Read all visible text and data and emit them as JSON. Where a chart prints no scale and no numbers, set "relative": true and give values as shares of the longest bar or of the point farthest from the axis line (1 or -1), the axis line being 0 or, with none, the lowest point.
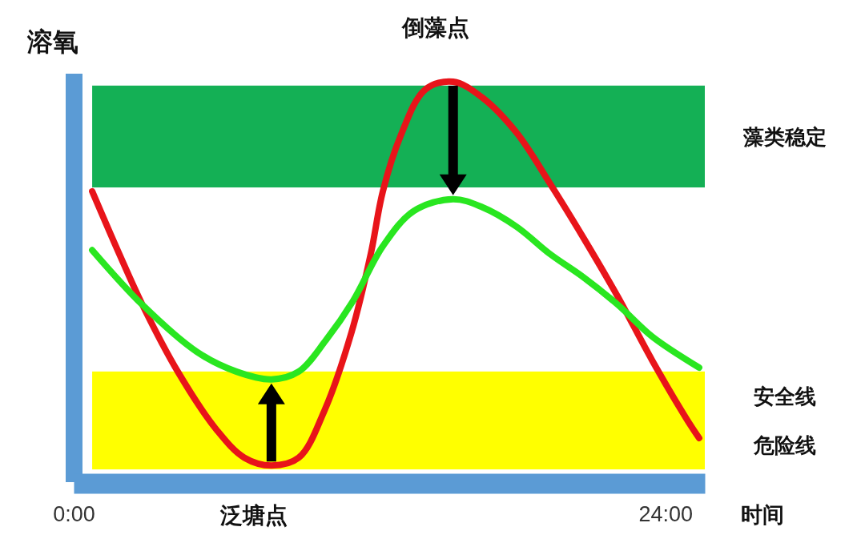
{
  "chart_data": {
    "type": "line",
    "xlabel": "时间",
    "ylabel": "溶氧",
    "relative": true,
    "xlim": [
      0,
      25.6
    ],
    "xticks": [
      {
        "value": 0,
        "label": "0:00"
      },
      {
        "value": 24,
        "label": "24:00"
      }
    ],
    "series": [
      {
        "color": "#e8141a",
        "x": [
          0.75,
          1.85,
          2.79,
          4.22,
          5.81,
          6.92,
          8.02,
          9.13,
          10.17,
          11.27,
          12.05,
          12.54,
          13.25,
          14.26,
          15.39,
          16.56,
          17.96,
          19.32,
          20.69,
          22.08,
          23.45,
          24.85,
          25.37
        ],
        "values": [
          0.72,
          0.56,
          0.43,
          0.26,
          0.11,
          0.04,
          0.02,
          0.04,
          0.16,
          0.36,
          0.56,
          0.72,
          0.86,
          0.98,
          1.0,
          0.96,
          0.87,
          0.74,
          0.6,
          0.45,
          0.29,
          0.14,
          0.09
        ]
      },
      {
        "color": "#29e620",
        "x": [
          0.75,
          2.79,
          5.0,
          6.59,
          8.02,
          9.13,
          10.23,
          11.33,
          12.54,
          13.8,
          15.39,
          16.56,
          17.96,
          19.32,
          20.69,
          22.08,
          23.45,
          24.85,
          25.37
        ],
        "values": [
          0.57,
          0.43,
          0.31,
          0.26,
          0.24,
          0.26,
          0.34,
          0.44,
          0.58,
          0.67,
          0.7,
          0.68,
          0.63,
          0.56,
          0.5,
          0.43,
          0.35,
          0.29,
          0.27
        ]
      }
    ],
    "bands": [
      {
        "axis": "y",
        "from": 0.73,
        "to": 0.99,
        "label": "藻类稳定",
        "color": "#14b055"
      },
      {
        "axis": "y",
        "from": 0.01,
        "to": 0.26,
        "color": "#ffff00"
      }
    ],
    "annotations": [
      {
        "text": "倒藻点",
        "x": 15.39,
        "y": 1.0
      },
      {
        "text": "泛塘点",
        "x": 8.02,
        "y": 0.02
      },
      "安全线",
      "危险线"
    ]
  }
}
